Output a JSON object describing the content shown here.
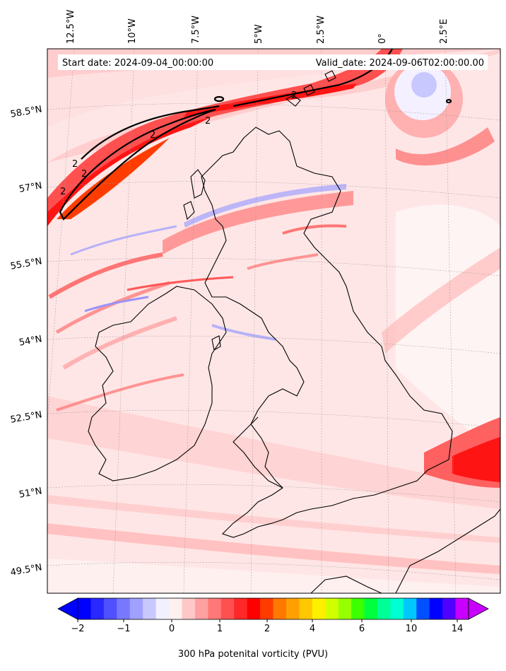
{
  "map": {
    "start_date": "Start date: 2024-09-04_00:00:00",
    "valid_date": "Valid_date: 2024-09-06T02:00:00.00",
    "lon_labels": [
      "12.5°W",
      "10°W",
      "7.5°W",
      "5°W",
      "2.5°W",
      "0°",
      "2.5°E"
    ],
    "lat_labels": [
      "58.5°N",
      "57°N",
      "55.5°N",
      "54°N",
      "52.5°N",
      "51°N",
      "49.5°N"
    ],
    "contour_label": "2",
    "coastline_color": "#000000",
    "gridlines": true
  },
  "colorbar": {
    "title": "300 hPa potenital vorticity (PVU)",
    "tick_labels": [
      "−2",
      "−1",
      "0",
      "1",
      "2",
      "4",
      "6",
      "10",
      "14"
    ],
    "extend": "both",
    "colors": [
      "#0000ff",
      "#2828ff",
      "#5050ff",
      "#7878ff",
      "#a0a0ff",
      "#c8c8ff",
      "#f0f0ff",
      "#fff0f0",
      "#ffc8c8",
      "#ffa0a0",
      "#ff7878",
      "#ff5050",
      "#ff2828",
      "#ff0000",
      "#ff3c00",
      "#ff7800",
      "#ffa000",
      "#ffc800",
      "#fff000",
      "#d2ff00",
      "#96ff00",
      "#3cff00",
      "#00ff3c",
      "#00ff96",
      "#00ffd2",
      "#00c8ff",
      "#0050ff",
      "#0000ff",
      "#5000ff",
      "#c800ff"
    ],
    "under_color": "#0000ff",
    "over_color": "#c800ff"
  }
}
